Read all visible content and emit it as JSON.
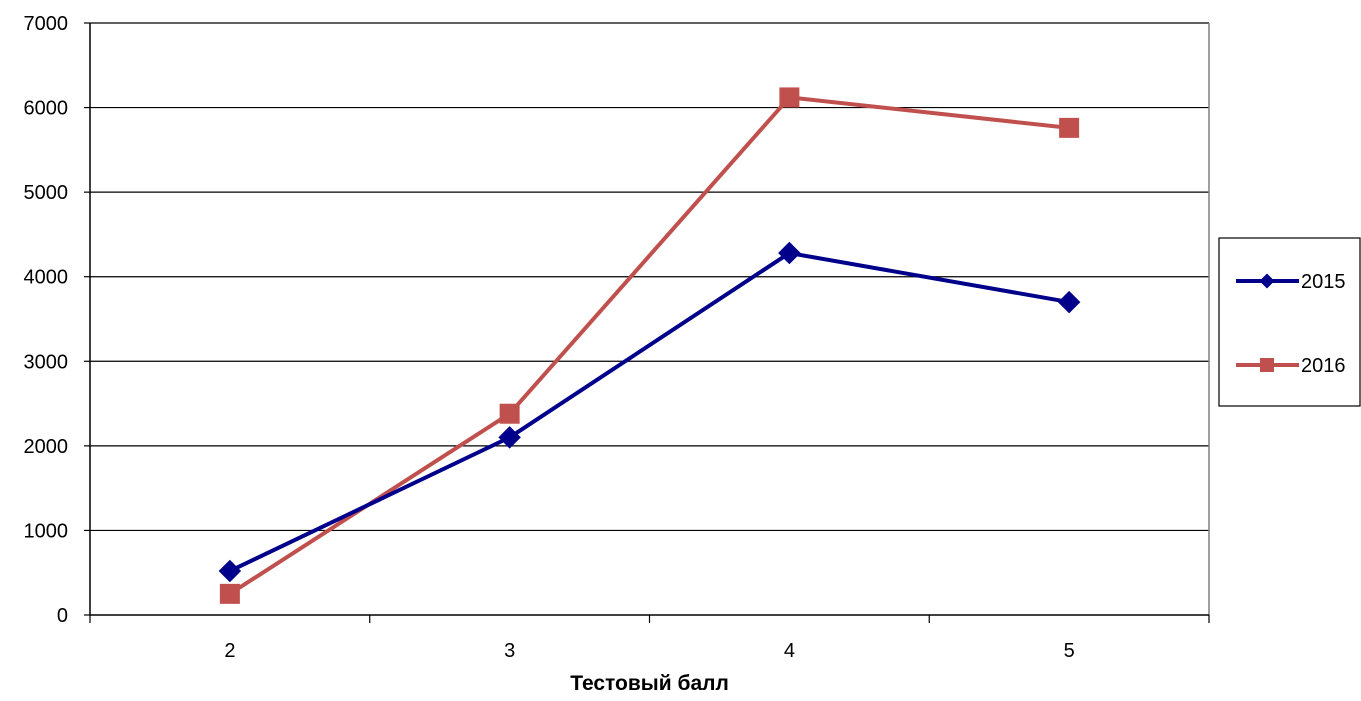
{
  "chart_data": {
    "type": "line",
    "title": "",
    "xlabel": "Тестовый балл",
    "ylabel": "",
    "categories": [
      "2",
      "3",
      "4",
      "5"
    ],
    "ylim": [
      0,
      7000
    ],
    "yticks": [
      "0",
      "1000",
      "2000",
      "3000",
      "4000",
      "5000",
      "6000",
      "7000"
    ],
    "grid": "horizontal",
    "legend_position": "right",
    "series": [
      {
        "name": "2015",
        "values": [
          520,
          2100,
          4280,
          3700
        ],
        "color": "#00008B",
        "marker": "diamond"
      },
      {
        "name": "2016",
        "values": [
          250,
          2380,
          6120,
          5760
        ],
        "color": "#C0504D",
        "marker": "square"
      }
    ]
  }
}
